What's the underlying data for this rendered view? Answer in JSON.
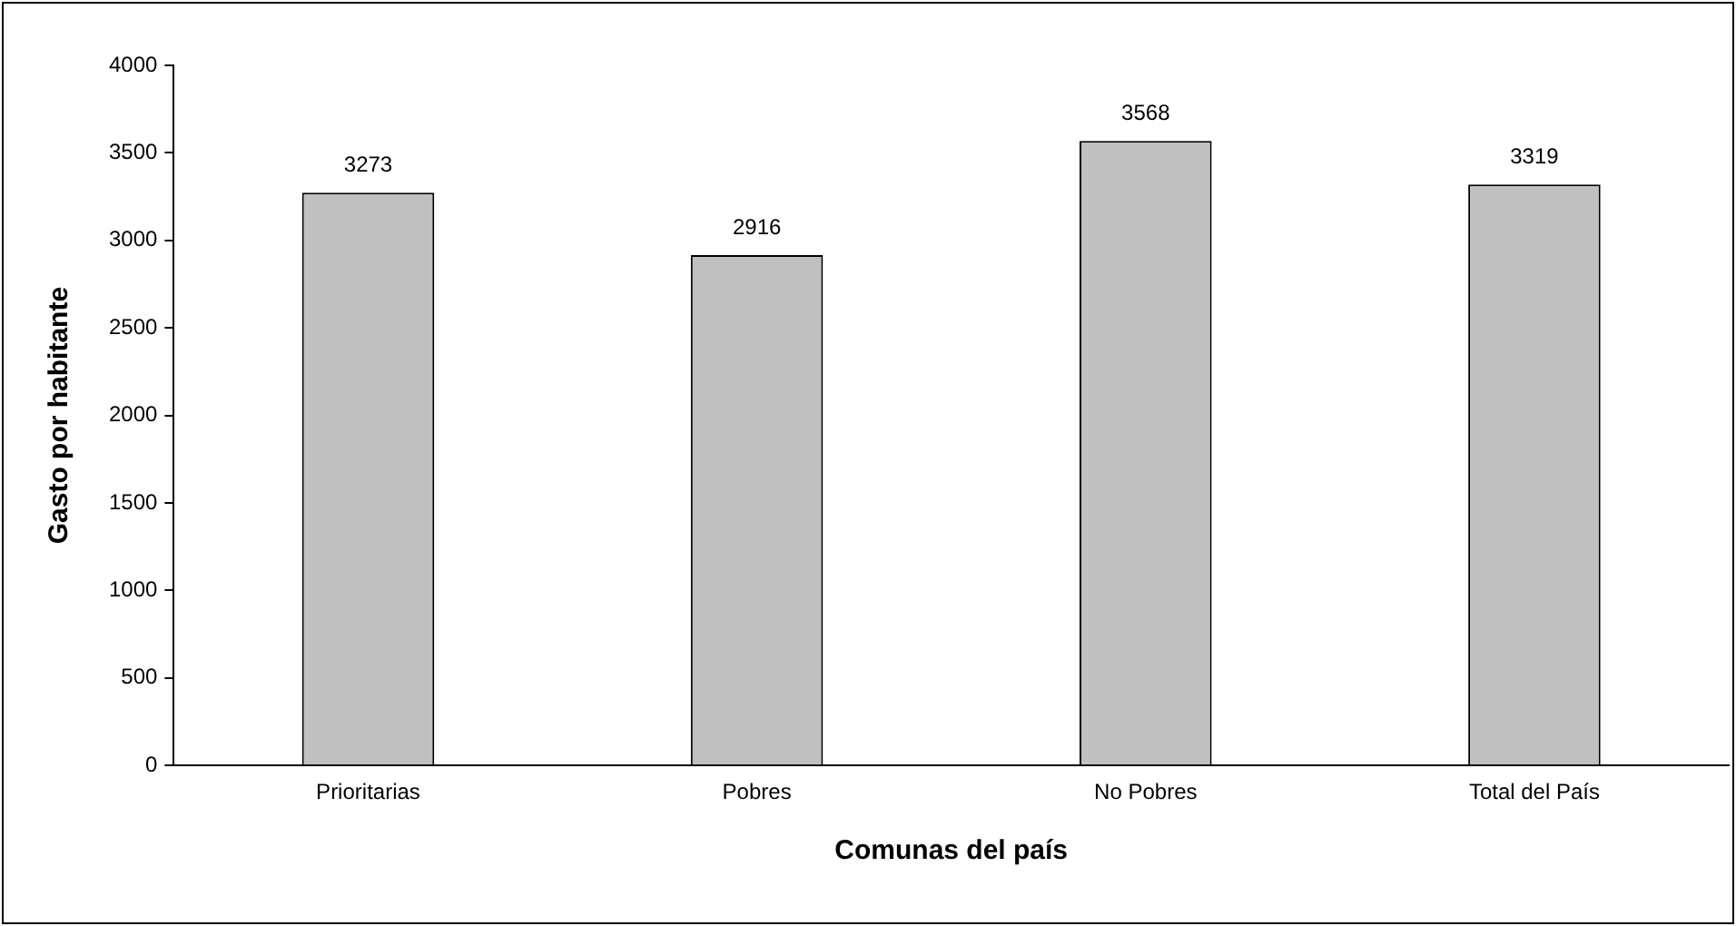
{
  "chart_data": {
    "type": "bar",
    "xlabel": "Comunas del país",
    "ylabel": "Gasto por habitante",
    "categories": [
      "Prioritarias",
      "Pobres",
      "No Pobres",
      "Total del País"
    ],
    "values": [
      3273,
      2916,
      3568,
      3319
    ],
    "color": "#c0c0c0",
    "ylim": [
      0,
      4000
    ],
    "yticks": [
      0,
      500,
      1000,
      1500,
      2000,
      2500,
      3000,
      3500,
      4000
    ],
    "grid": false,
    "data_labels": true
  }
}
